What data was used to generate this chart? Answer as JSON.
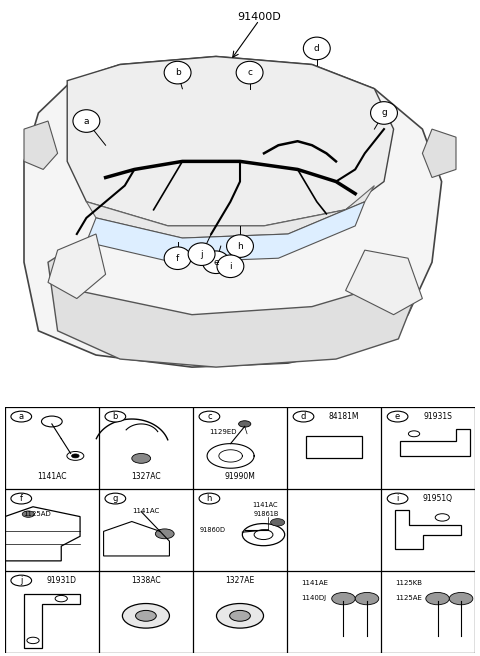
{
  "title": "91400D",
  "bg_color": "#ffffff",
  "fig_width": 4.8,
  "fig_height": 6.56,
  "dpi": 100,
  "table_header_row": {
    "labels": [
      "a",
      "b",
      "c",
      "d  84181M",
      "e  91931S"
    ],
    "label_ids": [
      "a",
      "b",
      "c",
      "d",
      "e"
    ]
  },
  "table_row2_header": [
    "f",
    "g",
    "h",
    "",
    "i  91951Q"
  ],
  "table_row3_header": [
    "j  91931D",
    "1338AC",
    "1327AE",
    "",
    ""
  ],
  "cell_parts": {
    "a": "1141AC",
    "b": "1327AC",
    "c_top": "1129ED",
    "c_bot": "91990M",
    "d": "84181M",
    "e": "91931S",
    "f_top": "1125AD",
    "g": "1141AC",
    "h_top": "1141AC",
    "h_mid": "91861B",
    "h_bot": "91860D",
    "i": "91951Q",
    "j": "91931D",
    "b2": "1338AC",
    "c2": "1327AE",
    "d2_top": "1141AE",
    "d2_bot": "1140DJ",
    "e2_top": "1125KB",
    "e2_bot": "1125AE"
  }
}
